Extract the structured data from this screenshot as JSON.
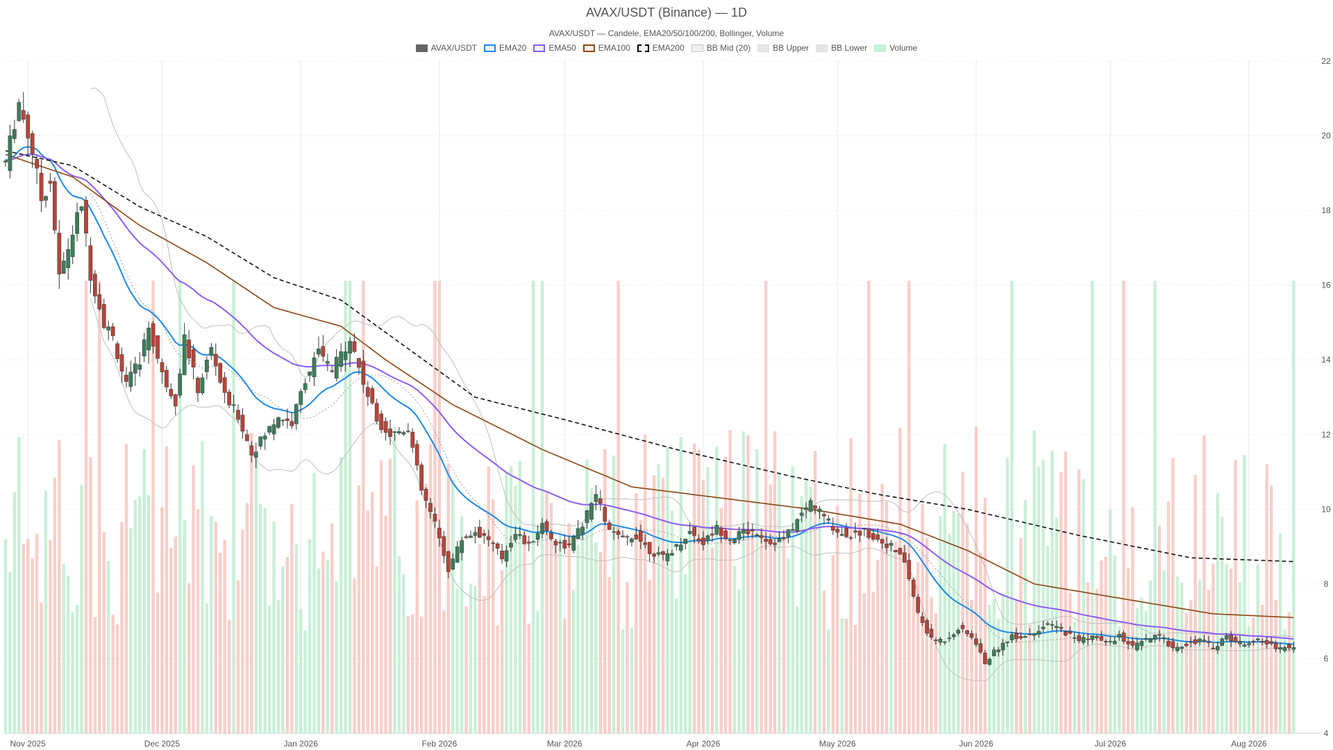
{
  "chart_data": {
    "type": "candlestick",
    "title": "AVAX/USDT (Binance) — 1D",
    "subtitle": "AVAX/USDT — Candele, EMA20/50/100/200, Bollinger, Volume",
    "legend": [
      {
        "name": "AVAX/USDT",
        "color": "#666666",
        "style": "solid"
      },
      {
        "name": "EMA20",
        "color": "#1e88e5",
        "style": "solid"
      },
      {
        "name": "EMA50",
        "color": "#8b5cf6",
        "style": "solid"
      },
      {
        "name": "EMA100",
        "color": "#8b4513",
        "style": "solid"
      },
      {
        "name": "EMA200",
        "color": "#000000",
        "style": "dashed"
      },
      {
        "name": "BB Mid (20)",
        "color": "#aaaaaa",
        "style": "dotted"
      },
      {
        "name": "BB Upper",
        "color": "#bbbbbb",
        "style": "solid"
      },
      {
        "name": "BB Lower",
        "color": "#bbbbbb",
        "style": "solid"
      },
      {
        "name": "Volume",
        "color": "#bde9cf",
        "style": "solid"
      }
    ],
    "x_ticks": [
      {
        "label": "Nov 2025",
        "day": 5
      },
      {
        "label": "Dec 2025",
        "day": 35
      },
      {
        "label": "Jan 2026",
        "day": 66
      },
      {
        "label": "Feb 2026",
        "day": 97
      },
      {
        "label": "Mar 2026",
        "day": 125
      },
      {
        "label": "Apr 2026",
        "day": 156
      },
      {
        "label": "May 2026",
        "day": 186
      },
      {
        "label": "Jun 2026",
        "day": 217
      },
      {
        "label": "Jul 2026",
        "day": 247
      },
      {
        "label": "Aug 2026",
        "day": 278
      }
    ],
    "x_range_days": [
      0,
      294
    ],
    "y_ticks": [
      4,
      6,
      8,
      10,
      12,
      14,
      16,
      18,
      20,
      22
    ],
    "ylim": [
      4,
      22
    ],
    "grid": true,
    "legend_position": "top-center",
    "colors": {
      "up": "#3d7d5a",
      "down": "#b5453a",
      "vol_up": "#bfeccf",
      "vol_down": "#f7c6bf"
    },
    "price_anchors": [
      [
        0,
        19.3
      ],
      [
        3,
        20.9
      ],
      [
        6,
        19.6
      ],
      [
        8,
        18.3
      ],
      [
        10,
        18.8
      ],
      [
        12,
        16.2
      ],
      [
        15,
        17.4
      ],
      [
        17,
        18.2
      ],
      [
        19,
        16.3
      ],
      [
        22,
        15.0
      ],
      [
        24,
        14.6
      ],
      [
        27,
        13.3
      ],
      [
        30,
        14.0
      ],
      [
        32,
        14.9
      ],
      [
        35,
        13.6
      ],
      [
        38,
        12.9
      ],
      [
        40,
        14.6
      ],
      [
        43,
        13.2
      ],
      [
        46,
        14.3
      ],
      [
        49,
        13.0
      ],
      [
        52,
        12.5
      ],
      [
        55,
        11.5
      ],
      [
        58,
        12.0
      ],
      [
        61,
        12.5
      ],
      [
        64,
        12.3
      ],
      [
        67,
        13.5
      ],
      [
        70,
        14.2
      ],
      [
        73,
        13.7
      ],
      [
        77,
        14.6
      ],
      [
        80,
        13.4
      ],
      [
        83,
        12.4
      ],
      [
        86,
        12.0
      ],
      [
        90,
        12.2
      ],
      [
        93,
        10.5
      ],
      [
        96,
        9.6
      ],
      [
        99,
        8.4
      ],
      [
        102,
        9.2
      ],
      [
        105,
        9.4
      ],
      [
        108,
        9.2
      ],
      [
        111,
        8.7
      ],
      [
        114,
        9.4
      ],
      [
        117,
        9.0
      ],
      [
        120,
        9.6
      ],
      [
        123,
        9.1
      ],
      [
        126,
        9.0
      ],
      [
        129,
        9.6
      ],
      [
        132,
        10.4
      ],
      [
        135,
        9.4
      ],
      [
        138,
        9.2
      ],
      [
        141,
        9.3
      ],
      [
        144,
        8.9
      ],
      [
        147,
        8.7
      ],
      [
        150,
        9.0
      ],
      [
        153,
        9.4
      ],
      [
        156,
        9.1
      ],
      [
        159,
        9.5
      ],
      [
        162,
        9.2
      ],
      [
        165,
        9.4
      ],
      [
        168,
        9.4
      ],
      [
        171,
        9.1
      ],
      [
        174,
        9.2
      ],
      [
        177,
        9.7
      ],
      [
        180,
        10.2
      ],
      [
        183,
        9.8
      ],
      [
        186,
        9.4
      ],
      [
        189,
        9.3
      ],
      [
        192,
        9.4
      ],
      [
        195,
        9.2
      ],
      [
        198,
        9.0
      ],
      [
        201,
        8.6
      ],
      [
        204,
        7.2
      ],
      [
        207,
        6.5
      ],
      [
        210,
        6.5
      ],
      [
        213,
        6.8
      ],
      [
        216,
        6.6
      ],
      [
        219,
        5.9
      ],
      [
        222,
        6.3
      ],
      [
        225,
        6.6
      ],
      [
        228,
        6.6
      ],
      [
        231,
        6.8
      ],
      [
        234,
        6.9
      ],
      [
        237,
        6.7
      ],
      [
        240,
        6.5
      ],
      [
        243,
        6.6
      ],
      [
        246,
        6.4
      ],
      [
        249,
        6.6
      ],
      [
        252,
        6.3
      ],
      [
        255,
        6.5
      ],
      [
        258,
        6.6
      ],
      [
        261,
        6.3
      ],
      [
        264,
        6.4
      ],
      [
        267,
        6.5
      ],
      [
        270,
        6.3
      ],
      [
        273,
        6.6
      ],
      [
        276,
        6.4
      ],
      [
        279,
        6.5
      ],
      [
        282,
        6.4
      ],
      [
        285,
        6.3
      ],
      [
        288,
        6.3
      ]
    ],
    "ema200_anchors": [
      [
        0,
        19.6
      ],
      [
        15,
        19.2
      ],
      [
        30,
        18.1
      ],
      [
        45,
        17.3
      ],
      [
        60,
        16.2
      ],
      [
        75,
        15.6
      ],
      [
        90,
        14.3
      ],
      [
        105,
        13.0
      ],
      [
        125,
        12.4
      ],
      [
        150,
        11.6
      ],
      [
        175,
        10.9
      ],
      [
        195,
        10.4
      ],
      [
        215,
        10.0
      ],
      [
        240,
        9.3
      ],
      [
        265,
        8.7
      ],
      [
        288,
        8.6
      ]
    ],
    "ema100_anchors": [
      [
        0,
        19.5
      ],
      [
        15,
        18.9
      ],
      [
        30,
        17.6
      ],
      [
        45,
        16.6
      ],
      [
        60,
        15.4
      ],
      [
        75,
        14.9
      ],
      [
        85,
        14.0
      ],
      [
        100,
        12.8
      ],
      [
        120,
        11.6
      ],
      [
        140,
        10.6
      ],
      [
        160,
        10.3
      ],
      [
        180,
        10.0
      ],
      [
        200,
        9.6
      ],
      [
        215,
        8.9
      ],
      [
        230,
        8.0
      ],
      [
        250,
        7.6
      ],
      [
        270,
        7.2
      ],
      [
        288,
        7.1
      ]
    ]
  }
}
